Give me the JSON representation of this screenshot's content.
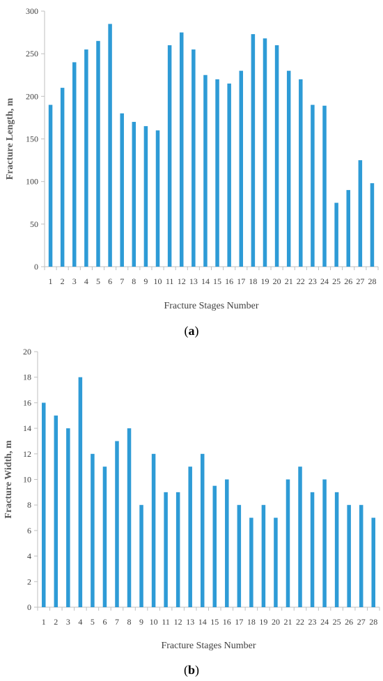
{
  "colors": {
    "bar": "#2E9BD6",
    "axis": "#bfbfbf",
    "text": "#404040"
  },
  "chart_data": [
    {
      "type": "bar",
      "panel_label_prefix": "(",
      "panel_label_letter": "a",
      "panel_label_suffix": ")",
      "xlabel": "Fracture Stages Number",
      "ylabel": "Fracture Length,  m",
      "ylim": [
        0,
        300
      ],
      "ytick_step": 50,
      "grid": false,
      "categories": [
        "1",
        "2",
        "3",
        "4",
        "5",
        "6",
        "7",
        "8",
        "9",
        "10",
        "11",
        "12",
        "13",
        "14",
        "15",
        "16",
        "17",
        "18",
        "19",
        "20",
        "21",
        "22",
        "23",
        "24",
        "25",
        "26",
        "27",
        "28"
      ],
      "values": [
        190,
        210,
        240,
        255,
        265,
        285,
        180,
        170,
        165,
        160,
        260,
        275,
        255,
        225,
        220,
        215,
        230,
        273,
        268,
        260,
        230,
        220,
        190,
        189,
        75,
        90,
        125,
        98
      ]
    },
    {
      "type": "bar",
      "panel_label_prefix": "(",
      "panel_label_letter": "b",
      "panel_label_suffix": ")",
      "xlabel": "Fracture Stages Number",
      "ylabel": "Fracture Width,  m",
      "ylim": [
        0,
        20
      ],
      "ytick_step": 2,
      "grid": false,
      "categories": [
        "1",
        "2",
        "3",
        "4",
        "5",
        "6",
        "7",
        "8",
        "9",
        "10",
        "11",
        "12",
        "13",
        "14",
        "15",
        "16",
        "17",
        "18",
        "19",
        "20",
        "21",
        "22",
        "23",
        "24",
        "25",
        "26",
        "27",
        "28"
      ],
      "values": [
        16,
        15,
        14,
        18,
        12,
        11,
        13,
        14,
        8,
        12,
        9,
        9,
        11,
        12,
        9.5,
        10,
        8,
        7,
        8,
        7,
        10,
        11,
        9,
        10,
        9,
        8,
        8,
        7
      ]
    }
  ]
}
